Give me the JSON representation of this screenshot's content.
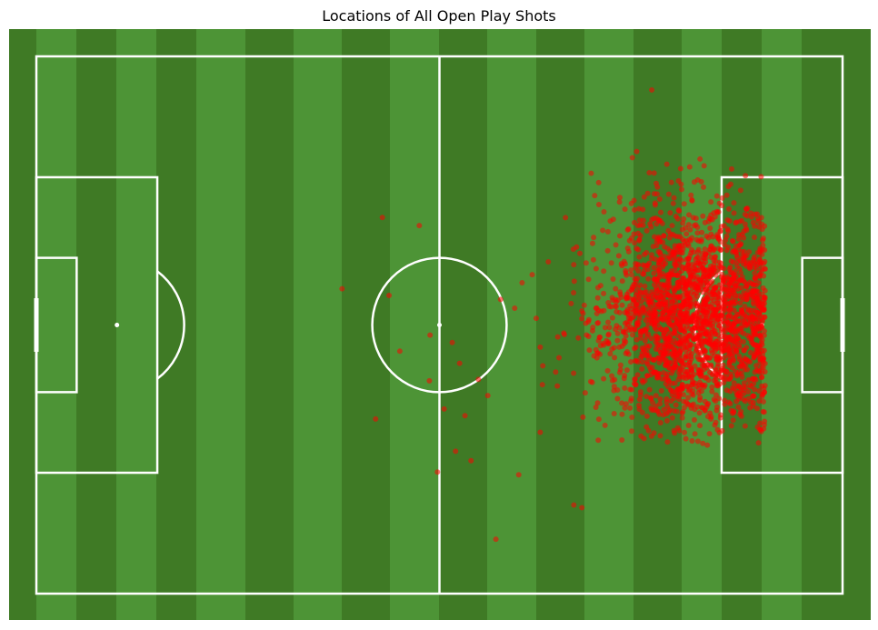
{
  "chart_data": {
    "type": "scatter",
    "title": "Locations of All Open Play Shots",
    "xlabel": "",
    "ylabel": "",
    "xlim": [
      0,
      120
    ],
    "ylim": [
      0,
      80
    ],
    "grid": false,
    "legend": "none",
    "colors": {
      "grass_dark": "#3f7a25",
      "grass_light": "#4d9436",
      "lines": "#ffffff",
      "shots": "#ff0000"
    },
    "series": [
      {
        "values_xy": [
          [
            91.6,
            5.0
          ],
          [
            83.7,
            18.8
          ],
          [
            86.8,
            21.7
          ],
          [
            91.0,
            20.4
          ],
          [
            97.6,
            21.5
          ],
          [
            101.3,
            20.8
          ],
          [
            57.0,
            25.2
          ],
          [
            51.5,
            24.0
          ],
          [
            45.5,
            34.6
          ],
          [
            52.5,
            35.6
          ],
          [
            54.1,
            43.9
          ],
          [
            58.5,
            48.3
          ],
          [
            58.6,
            41.5
          ],
          [
            60.7,
            52.5
          ],
          [
            61.9,
            42.6
          ],
          [
            63.0,
            45.7
          ],
          [
            65.8,
            48.1
          ],
          [
            67.2,
            50.5
          ],
          [
            59.7,
            61.9
          ],
          [
            62.4,
            58.8
          ],
          [
            63.8,
            53.5
          ],
          [
            64.7,
            60.2
          ],
          [
            71.8,
            62.3
          ],
          [
            50.5,
            54.0
          ],
          [
            68.4,
            71.9
          ],
          [
            80.0,
            66.8
          ],
          [
            81.2,
            67.2
          ],
          [
            69.1,
            36.2
          ],
          [
            71.2,
            37.5
          ],
          [
            72.3,
            33.7
          ],
          [
            73.8,
            32.5
          ],
          [
            74.4,
            39.0
          ],
          [
            75.0,
            43.3
          ],
          [
            76.2,
            30.6
          ],
          [
            77.3,
            47.0
          ],
          [
            78.5,
            41.2
          ],
          [
            79.6,
            36.8
          ],
          [
            80.4,
            28.4
          ],
          [
            81.7,
            50.1
          ],
          [
            82.2,
            33.2
          ],
          [
            83.0,
            44.6
          ],
          [
            84.3,
            25.9
          ],
          [
            85.1,
            39.6
          ],
          [
            86.0,
            53.2
          ],
          [
            86.7,
            29.7
          ],
          [
            87.5,
            42.8
          ],
          [
            88.2,
            35.1
          ],
          [
            89.0,
            48.7
          ],
          [
            89.8,
            24.4
          ],
          [
            90.5,
            31.9
          ],
          [
            91.3,
            46.3
          ],
          [
            92.0,
            38.2
          ],
          [
            92.8,
            27.5
          ],
          [
            93.4,
            52.6
          ],
          [
            94.1,
            34.4
          ],
          [
            94.9,
            43.7
          ],
          [
            95.6,
            22.9
          ],
          [
            96.2,
            49.5
          ],
          [
            97.0,
            30.1
          ],
          [
            97.7,
            40.8
          ],
          [
            98.4,
            26.3
          ],
          [
            99.1,
            45.2
          ],
          [
            99.8,
            33.6
          ],
          [
            100.4,
            54.0
          ],
          [
            101.2,
            37.9
          ],
          [
            101.9,
            28.8
          ],
          [
            102.6,
            47.4
          ],
          [
            103.3,
            31.4
          ],
          [
            104.0,
            41.9
          ],
          [
            104.7,
            24.6
          ],
          [
            105.3,
            50.2
          ],
          [
            106.1,
            35.5
          ],
          [
            106.8,
            44.8
          ],
          [
            107.4,
            29.2
          ],
          [
            108.1,
            39.3
          ]
        ]
      }
    ],
    "pitch": {
      "length": 120,
      "width": 80
    }
  }
}
